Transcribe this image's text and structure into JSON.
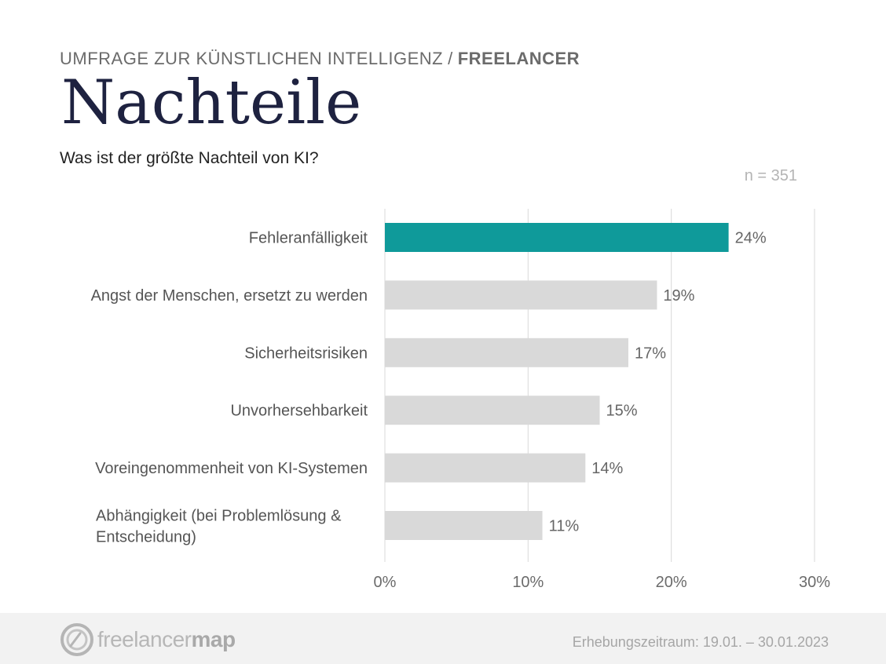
{
  "header": {
    "kicker": "UMFRAGE ZUR KÜNSTLICHEN INTELLIGENZ",
    "separator": "/",
    "kicker_accent": "FREELANCER",
    "title": "Nachteile",
    "question": "Was ist der größte Nachteil von KI?",
    "sample_size": "n = 351"
  },
  "colors": {
    "highlight_bar": "#0f9a9a",
    "default_bar": "#d9d9d9",
    "accent_text": "#11999b",
    "title": "#1e2240"
  },
  "chart_data": {
    "type": "bar",
    "orientation": "horizontal",
    "categories": [
      "Fehleranfälligkeit",
      "Angst der Menschen, ersetzt zu werden",
      "Sicherheitsrisiken",
      "Unvorhersehbarkeit",
      "Voreingenommenheit von KI-Systemen",
      "Abhängigkeit (bei Problemlösung & Entscheidung)"
    ],
    "values": [
      24,
      19,
      17,
      15,
      14,
      11
    ],
    "value_labels": [
      "24%",
      "19%",
      "17%",
      "15%",
      "14%",
      "11%"
    ],
    "highlighted_index": 0,
    "xlim": [
      0,
      30
    ],
    "xticks": [
      0,
      10,
      20,
      30
    ],
    "xtick_labels": [
      "0%",
      "10%",
      "20%",
      "30%"
    ],
    "grid": true,
    "legend": false
  },
  "footer": {
    "logo_icon": "freelancermap-logo-icon",
    "logo_text_light": "freelancer",
    "logo_text_bold": "map",
    "survey_period": "Erhebungszeitraum: 19.01. – 30.01.2023"
  }
}
